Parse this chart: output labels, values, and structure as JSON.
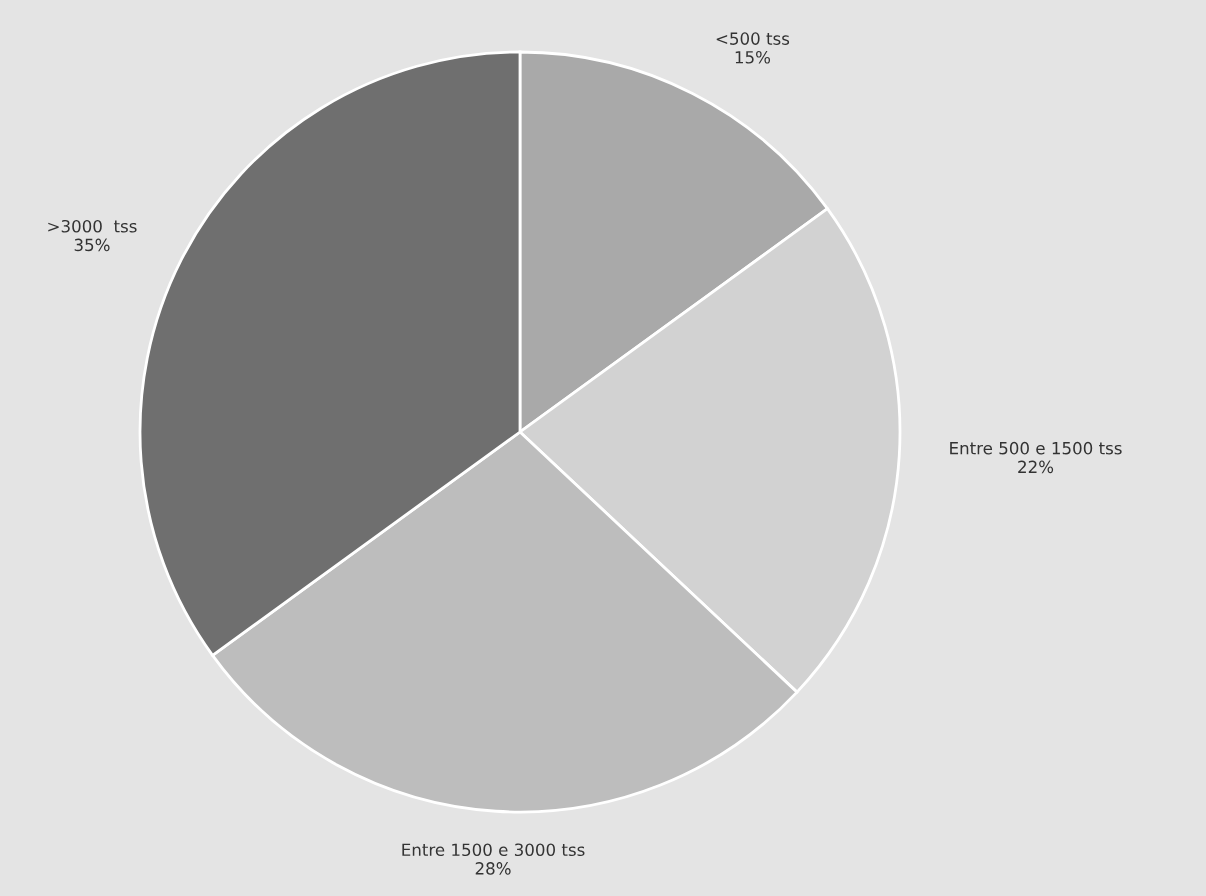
{
  "chart_data": {
    "type": "pie",
    "categories": [
      "<500 tss",
      "Entre 500 e 1500 tss",
      "Entre 1500 e 3000 tss",
      ">3000  tss"
    ],
    "values": [
      15,
      22,
      28,
      35
    ],
    "value_labels": [
      "15%",
      "22%",
      "28%",
      "35%"
    ],
    "colors": [
      "#a9a9a9",
      "#d2d2d2",
      "#bdbdbd",
      "#6f6f6f"
    ],
    "legend": false
  }
}
